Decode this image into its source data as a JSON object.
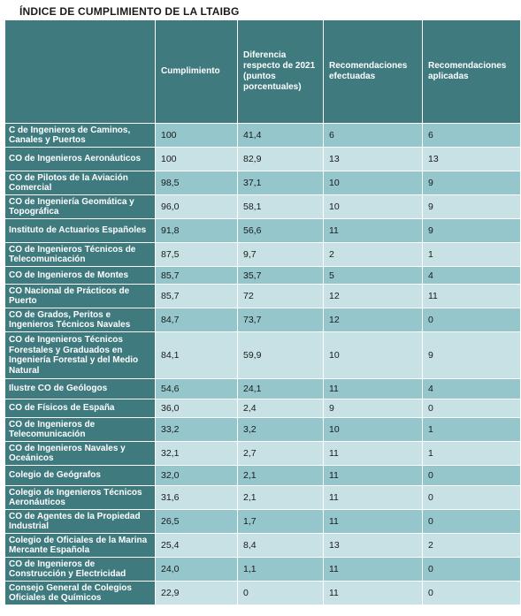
{
  "title": "ÍNDICE DE CUMPLIMIENTO DE LA LTAIBG",
  "headers": [
    "",
    "Cumplimiento",
    "Diferencia respecto de 2021 (puntos porcentuales)",
    "Recomendaciones efectuadas",
    "Recomendaciones aplicadas"
  ],
  "rows": [
    {
      "name": "C de Ingenieros de Caminos, Canales y Puertos",
      "cumplimiento": "100",
      "diferencia": "41,4",
      "efectuadas": "6",
      "aplicadas": "6"
    },
    {
      "name": "CO de Ingenieros Aeronáuticos",
      "cumplimiento": "100",
      "diferencia": "82,9",
      "efectuadas": "13",
      "aplicadas": "13"
    },
    {
      "name": "CO de Pilotos de la Aviación Comercial",
      "cumplimiento": "98,5",
      "diferencia": "37,1",
      "efectuadas": "10",
      "aplicadas": "9"
    },
    {
      "name": "CO de Ingeniería Geomática y Topográfica",
      "cumplimiento": "96,0",
      "diferencia": "58,1",
      "efectuadas": "10",
      "aplicadas": "9"
    },
    {
      "name": "Instituto de Actuarios Españoles",
      "cumplimiento": "91,8",
      "diferencia": "56,6",
      "efectuadas": "11",
      "aplicadas": "9"
    },
    {
      "name": "CO de Ingenieros Técnicos de Telecomunicación",
      "cumplimiento": "87,5",
      "diferencia": "9,7",
      "efectuadas": "2",
      "aplicadas": "1"
    },
    {
      "name": "CO de Ingenieros de Montes",
      "cumplimiento": "85,7",
      "diferencia": "35,7",
      "efectuadas": "5",
      "aplicadas": "4"
    },
    {
      "name": "CO Nacional de Prácticos de Puerto",
      "cumplimiento": "85,7",
      "diferencia": "72",
      "efectuadas": "12",
      "aplicadas": "11"
    },
    {
      "name": "CO de Grados, Peritos e Ingenieros Técnicos Navales",
      "cumplimiento": "84,7",
      "diferencia": "73,7",
      "efectuadas": "12",
      "aplicadas": "0"
    },
    {
      "name": "CO de Ingenieros Técnicos Forestales y Graduados en Ingeniería Forestal y del Medio Natural",
      "cumplimiento": "84,1",
      "diferencia": "59,9",
      "efectuadas": "10",
      "aplicadas": "9"
    },
    {
      "name": "Ilustre CO de Geólogos",
      "cumplimiento": "54,6",
      "diferencia": "24,1",
      "efectuadas": "11",
      "aplicadas": "4"
    },
    {
      "name": "CO de Físicos de España",
      "cumplimiento": "36,0",
      "diferencia": "2,4",
      "efectuadas": "9",
      "aplicadas": "0"
    },
    {
      "name": "CO de Ingenieros de Telecomunicación",
      "cumplimiento": "33,2",
      "diferencia": "3,2",
      "efectuadas": "10",
      "aplicadas": "1"
    },
    {
      "name": "CO de Ingenieros Navales y Oceánicos",
      "cumplimiento": "32,1",
      "diferencia": "2,7",
      "efectuadas": "11",
      "aplicadas": "1"
    },
    {
      "name": "Colegio de Geógrafos",
      "cumplimiento": "32,0",
      "diferencia": "2,1",
      "efectuadas": "11",
      "aplicadas": "0"
    },
    {
      "name": "Colegio de Ingenieros Técnicos Aeronáuticos",
      "cumplimiento": "31,6",
      "diferencia": "2,1",
      "efectuadas": "11",
      "aplicadas": "0"
    },
    {
      "name": "CO de Agentes de la Propiedad Industrial",
      "cumplimiento": "26,5",
      "diferencia": "1,7",
      "efectuadas": "11",
      "aplicadas": "0"
    },
    {
      "name": "Colegio de Oficiales de la Marina Mercante Española",
      "cumplimiento": "25,4",
      "diferencia": "8,4",
      "efectuadas": "13",
      "aplicadas": "2"
    },
    {
      "name": "CO de Ingenieros de Construcción y Electricidad",
      "cumplimiento": "24,0",
      "diferencia": "1,1",
      "efectuadas": "11",
      "aplicadas": "0"
    },
    {
      "name": "Consejo General de Colegios Oficiales de Químicos",
      "cumplimiento": "22,9",
      "diferencia": "0",
      "efectuadas": "11",
      "aplicadas": "0"
    }
  ]
}
